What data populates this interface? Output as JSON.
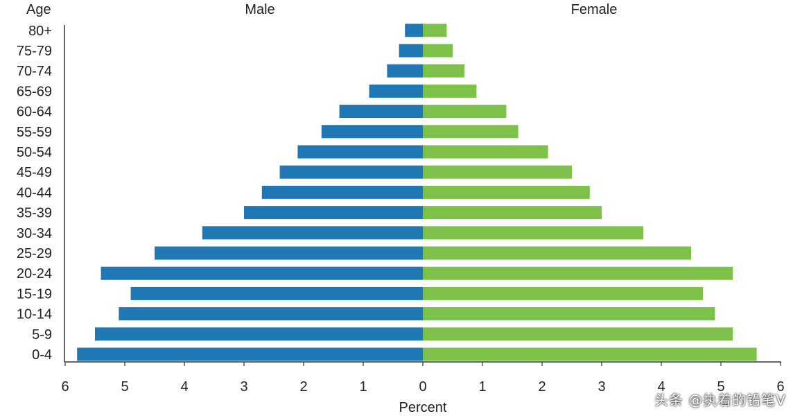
{
  "chart_data": {
    "type": "bar",
    "orientation": "horizontal",
    "layout": "population-pyramid",
    "categories": [
      "0-4",
      "5-9",
      "10-14",
      "15-19",
      "20-24",
      "25-29",
      "30-34",
      "35-39",
      "40-44",
      "45-49",
      "50-54",
      "55-59",
      "60-64",
      "65-69",
      "70-74",
      "75-79",
      "80+"
    ],
    "series": [
      {
        "name": "Male",
        "color": "#1f77b4",
        "values": [
          5.8,
          5.5,
          5.1,
          4.9,
          5.4,
          4.5,
          3.7,
          3.0,
          2.7,
          2.4,
          2.1,
          1.7,
          1.4,
          0.9,
          0.6,
          0.4,
          0.3
        ]
      },
      {
        "name": "Female",
        "color": "#7dc14a",
        "values": [
          5.6,
          5.2,
          4.9,
          4.7,
          5.2,
          4.5,
          3.7,
          3.0,
          2.8,
          2.5,
          2.1,
          1.6,
          1.4,
          0.9,
          0.7,
          0.5,
          0.4
        ]
      }
    ],
    "y_axis_title": "Age",
    "xlabel": "Percent",
    "xlim": [
      -6,
      6
    ],
    "x_tick_values": [
      -6,
      -5,
      -4,
      -3,
      -2,
      -1,
      0,
      1,
      2,
      3,
      4,
      5,
      6
    ],
    "x_tick_labels": [
      "6",
      "5",
      "4",
      "3",
      "2",
      "1",
      "0",
      "1",
      "2",
      "3",
      "4",
      "5",
      "6"
    ],
    "grid": false,
    "legend": "none"
  },
  "watermark": "头条 @执着的铅笔V"
}
